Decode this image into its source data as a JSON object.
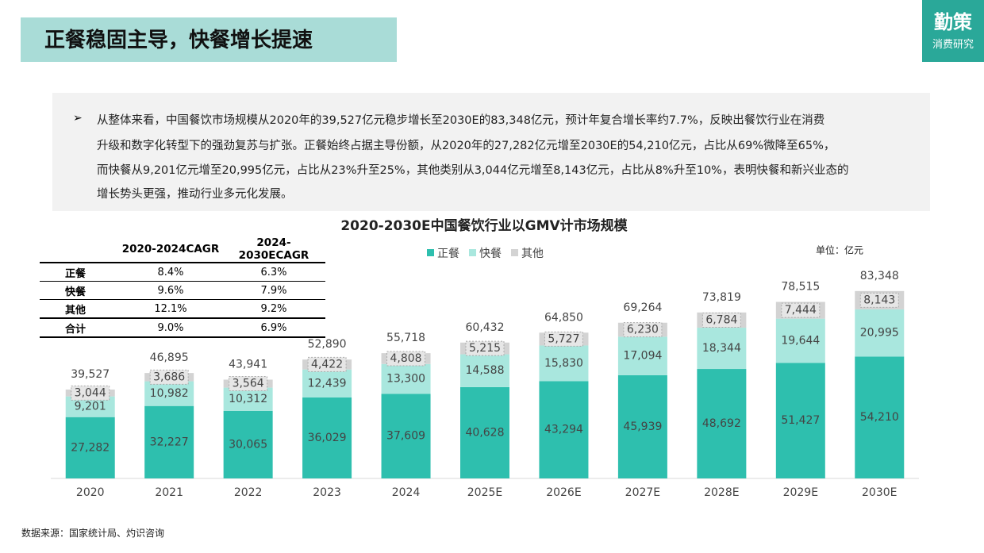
{
  "header": {
    "title": "正餐稳固主导，快餐增长提速",
    "logo_top": "勤策",
    "logo_bottom": "消费研究"
  },
  "summary": {
    "bullet": "➢",
    "lines": [
      "从整体来看，中国餐饮市场规模从2020年的39,527亿元稳步增长至2030E的83,348亿元，预计年复合增长率约7.7%，反映出餐饮行业在消费",
      "升级和数字化转型下的强劲复苏与扩张。正餐始终占据主导份额，从2020年的27,282亿元增至2030E的54,210亿元，占比从69%微降至65%，",
      "而快餐从9,201亿元增至20,995亿元，占比从23%升至25%，其他类别从3,044亿元增至8,143亿元，占比从8%升至10%，表明快餐和新兴业态的",
      "增长势头更强，推动行业多元化发展。"
    ]
  },
  "table": {
    "columns": [
      "2020-2024CAGR",
      "2024-2030ECAGR"
    ],
    "rows": [
      [
        "正餐",
        "8.4%",
        "6.3%"
      ],
      [
        "快餐",
        "9.6%",
        "7.9%"
      ],
      [
        "其他",
        "12.1%",
        "9.2%"
      ],
      [
        "合计",
        "9.0%",
        "6.9%"
      ]
    ]
  },
  "chart_data": {
    "type": "stacked_bar",
    "title": "2020-2030E中国餐饮行业以GMV计市场规模",
    "unit": "单位：亿元",
    "categories": [
      "2020",
      "2021",
      "2022",
      "2023",
      "2024",
      "2025E",
      "2026E",
      "2027E",
      "2028E",
      "2029E",
      "2030E"
    ],
    "series": [
      {
        "name": "正餐",
        "color": "#2ebfae",
        "values": [
          27282,
          32227,
          30065,
          36029,
          37609,
          40628,
          43294,
          45939,
          48692,
          51427,
          54210
        ],
        "value_labels": [
          "27,282",
          "32,227",
          "30,065",
          "36,029",
          "37,609",
          "40,628",
          "43,294",
          "45,939",
          "48,692",
          "51,427",
          "54,210"
        ]
      },
      {
        "name": "快餐",
        "color": "#a9e7de",
        "values": [
          9201,
          10982,
          10312,
          12439,
          13300,
          14588,
          15830,
          17094,
          18344,
          19644,
          20995
        ],
        "value_labels": [
          "9,201",
          "10,982",
          "10,312",
          "12,439",
          "13,300",
          "14,588",
          "15,830",
          "17,094",
          "18,344",
          "19,644",
          "20,995"
        ]
      },
      {
        "name": "其他",
        "color": "#d3d3d3",
        "values": [
          3044,
          3686,
          3564,
          4422,
          4808,
          5215,
          5727,
          6230,
          6784,
          7444,
          8143
        ],
        "value_labels": [
          "3,044",
          "3,686",
          "3,564",
          "4,422",
          "4,808",
          "5,215",
          "5,727",
          "6,230",
          "6,784",
          "7,444",
          "8,143"
        ]
      }
    ],
    "totals": [
      39527,
      46895,
      43941,
      52890,
      55718,
      60432,
      64850,
      69264,
      73819,
      78515,
      83348
    ],
    "total_labels": [
      "39,527",
      "46,895",
      "43,941",
      "52,890",
      "55,718",
      "60,432",
      "64,850",
      "69,264",
      "73,819",
      "78,515",
      "83,348"
    ],
    "ylim": [
      0,
      90000
    ]
  },
  "source": "数据来源：国家统计局、灼识咨询"
}
